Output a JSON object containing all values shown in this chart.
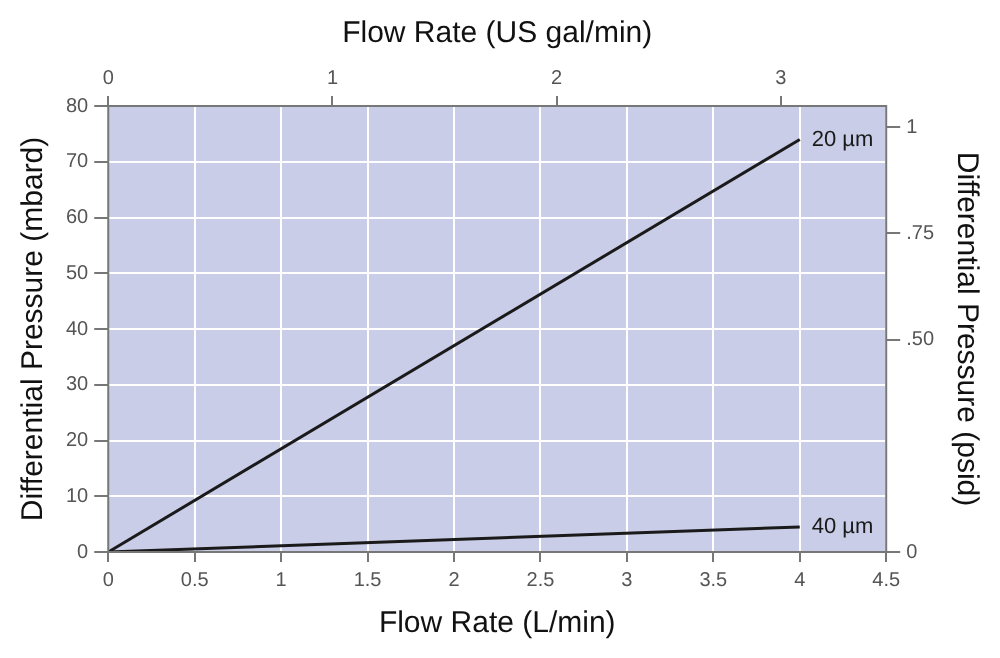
{
  "chart_data": {
    "type": "line",
    "xlabel": "Flow Rate (L/min)",
    "x2label": "Flow Rate (US gal/min)",
    "ylabel": "Differential Pressure (mbard)",
    "y2label": "Differential Pressure (psid)",
    "xlim": [
      0,
      4.5
    ],
    "xticks": [
      0,
      0.5,
      1,
      1.5,
      2,
      2.5,
      3,
      3.5,
      4,
      4.5
    ],
    "x2lim": [
      0,
      3.47
    ],
    "x2ticks": [
      0,
      1,
      2,
      3
    ],
    "ylim": [
      0,
      80
    ],
    "yticks": [
      0,
      10,
      20,
      30,
      40,
      50,
      60,
      70,
      80
    ],
    "y2lim": [
      0,
      1.05
    ],
    "y2ticks": [
      0,
      {
        "value": 0.5,
        "label": ".50"
      },
      {
        "value": 0.75,
        "label": ".75"
      },
      1
    ],
    "x": [
      0,
      4
    ],
    "grid": true,
    "legend": false,
    "marker": "none",
    "line_style": "solid",
    "series": [
      {
        "name": "20 µm",
        "color": "#1a1a1a",
        "values": [
          0,
          74
        ]
      },
      {
        "name": "40 µm",
        "color": "#1a1a1a",
        "values": [
          0,
          4.5
        ]
      }
    ]
  }
}
